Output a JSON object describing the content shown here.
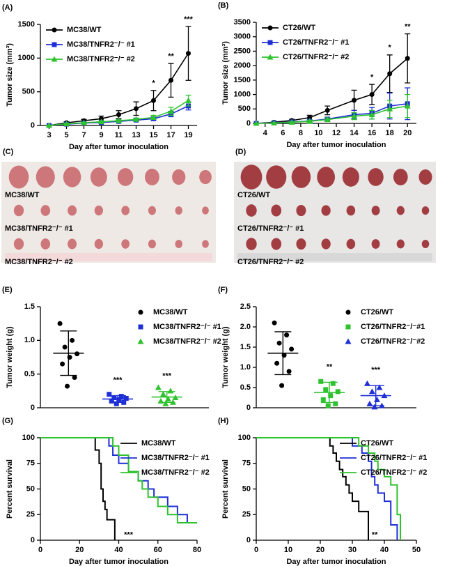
{
  "chart_data": [
    {
      "type": "line",
      "panel": "(A)",
      "xlabel": "Day after tumor inoculation",
      "ylabel": "Tumor size (mm³)",
      "x": [
        3,
        5,
        7,
        9,
        11,
        13,
        15,
        17,
        19
      ],
      "xlim": [
        2,
        20
      ],
      "xticks": [
        3,
        5,
        7,
        9,
        11,
        13,
        15,
        17,
        19
      ],
      "ylim": [
        0,
        1500
      ],
      "yticks": [
        0,
        500,
        1000,
        1500
      ],
      "legend": "upper left",
      "series": [
        {
          "name": "MC38/WT",
          "color": "#000000",
          "marker": "circle",
          "values": [
            0,
            40,
            70,
            100,
            160,
            250,
            370,
            670,
            1070
          ],
          "errors": [
            5,
            15,
            20,
            40,
            60,
            100,
            150,
            250,
            400
          ]
        },
        {
          "name": "MC38/TNFR2⁻/⁻ #1",
          "color": "#1f2fd6",
          "marker": "square",
          "values": [
            0,
            20,
            35,
            45,
            60,
            80,
            100,
            170,
            290
          ],
          "errors": [
            3,
            8,
            10,
            12,
            15,
            20,
            25,
            40,
            60
          ]
        },
        {
          "name": "MC38/TNFR2⁻/⁻ #2",
          "color": "#2ec22e",
          "marker": "triangle",
          "values": [
            0,
            25,
            40,
            55,
            70,
            90,
            120,
            210,
            370
          ],
          "errors": [
            3,
            8,
            10,
            12,
            15,
            20,
            30,
            60,
            80
          ]
        }
      ],
      "annotations": [
        {
          "x": 15,
          "text": "*"
        },
        {
          "x": 17,
          "text": "**"
        },
        {
          "x": 19,
          "text": "***"
        }
      ]
    },
    {
      "type": "line",
      "panel": "(B)",
      "xlabel": "Day after tumor inoculation",
      "ylabel": "Tumor size (mm³)",
      "x": [
        3,
        5,
        7,
        9,
        11,
        14,
        16,
        18,
        20
      ],
      "xlim": [
        3,
        21
      ],
      "xticks": [
        4,
        6,
        8,
        10,
        12,
        14,
        16,
        18,
        20
      ],
      "ylim": [
        0,
        3500
      ],
      "yticks": [
        0,
        500,
        1000,
        1500,
        2000,
        2500,
        3000,
        3500
      ],
      "legend": "upper left",
      "series": [
        {
          "name": "CT26/WT",
          "color": "#000000",
          "marker": "circle",
          "values": [
            0,
            40,
            100,
            200,
            450,
            800,
            1000,
            1720,
            2250
          ],
          "errors": [
            5,
            20,
            40,
            80,
            150,
            350,
            350,
            650,
            850
          ]
        },
        {
          "name": "CT26/TNFR2⁻/⁻ #1",
          "color": "#1f2fd6",
          "marker": "square",
          "values": [
            0,
            20,
            50,
            80,
            150,
            300,
            350,
            600,
            680
          ],
          "errors": [
            3,
            10,
            20,
            40,
            60,
            150,
            200,
            450,
            550
          ]
        },
        {
          "name": "CT26/TNFR2⁻/⁻ #2",
          "color": "#2ec22e",
          "marker": "triangle",
          "values": [
            0,
            15,
            40,
            70,
            130,
            250,
            300,
            500,
            600
          ],
          "errors": [
            3,
            10,
            20,
            40,
            60,
            120,
            150,
            300,
            400
          ]
        }
      ],
      "annotations": [
        {
          "x": 16,
          "text": "*"
        },
        {
          "x": 18,
          "text": "*"
        },
        {
          "x": 20,
          "text": "**"
        }
      ]
    },
    {
      "type": "dotplot",
      "panel": "(E)",
      "ylabel": "Tumor weight (g)",
      "ylim": [
        0,
        1.5
      ],
      "yticks": [
        0,
        0.5,
        {
          "value": 1,
          "label": "1.0"
        },
        1.5
      ],
      "legend": "upper right",
      "series": [
        {
          "name": "MC38/WT",
          "color": "#000000",
          "marker": "circle",
          "values": [
            1.25,
            1.0,
            0.9,
            0.8,
            0.75,
            0.65,
            0.45,
            0.32
          ],
          "mean": 0.81,
          "sd": 0.33
        },
        {
          "name": "MC38/TNFR2⁻/⁻ #1",
          "color": "#1f2fd6",
          "marker": "square",
          "values": [
            0.2,
            0.17,
            0.15,
            0.14,
            0.12,
            0.1,
            0.08,
            0.06
          ],
          "mean": 0.13,
          "sd": 0.05
        },
        {
          "name": "MC38/TNFR2⁻/⁻ #2",
          "color": "#2ec22e",
          "marker": "triangle",
          "values": [
            0.3,
            0.25,
            0.2,
            0.15,
            0.13,
            0.1,
            0.08,
            0.06
          ],
          "mean": 0.16,
          "sd": 0.08
        }
      ],
      "annotations": [
        {
          "series": 1,
          "text": "***"
        },
        {
          "series": 2,
          "text": "***"
        }
      ]
    },
    {
      "type": "dotplot",
      "panel": "(F)",
      "ylabel": "Tumor weight (g)",
      "ylim": [
        0,
        2.5
      ],
      "yticks": [
        0,
        0.5,
        {
          "value": 1,
          "label": "1.0"
        },
        1.5,
        {
          "value": 2,
          "label": "2.0"
        },
        2.5
      ],
      "legend": "upper right",
      "series": [
        {
          "name": "CT26/WT",
          "color": "#000000",
          "marker": "circle",
          "values": [
            2.1,
            1.8,
            1.6,
            1.45,
            1.3,
            1.1,
            0.9,
            0.55
          ],
          "mean": 1.35,
          "sd": 0.53
        },
        {
          "name": "CT26/TNFR2⁻/⁻#1",
          "color": "#2ec22e",
          "marker": "square",
          "values": [
            0.65,
            0.6,
            0.45,
            0.4,
            0.3,
            0.2,
            0.1,
            0.05
          ],
          "mean": 0.38,
          "sd": 0.25
        },
        {
          "name": "CT26/TNFR2⁻/⁻#2",
          "color": "#1f2fd6",
          "marker": "triangle",
          "values": [
            0.6,
            0.5,
            0.4,
            0.3,
            0.2,
            0.1,
            0.05,
            0.02
          ],
          "mean": 0.3,
          "sd": 0.25
        }
      ],
      "annotations": [
        {
          "series": 1,
          "text": "**"
        },
        {
          "series": 2,
          "text": "***"
        }
      ]
    },
    {
      "type": "step",
      "panel": "(G)",
      "xlabel": "Day after tumor inoculation",
      "ylabel": "Percent survival",
      "xlim": [
        0,
        80
      ],
      "xticks": [
        0,
        20,
        40,
        60,
        80
      ],
      "ylim": [
        0,
        100
      ],
      "yticks": [
        0,
        25,
        50,
        75,
        100
      ],
      "legend": "upper right",
      "series": [
        {
          "name": "MC38/WT",
          "color": "#000000",
          "x": [
            0,
            28,
            30,
            31,
            32,
            33,
            34,
            38
          ],
          "values": [
            100,
            88,
            75,
            50,
            38,
            30,
            20,
            0
          ]
        },
        {
          "name": "MC38/TNFR2⁻/⁻ #1",
          "color": "#1f2fd6",
          "x": [
            0,
            35,
            37,
            40,
            45,
            50,
            55,
            58,
            65,
            70,
            75,
            80
          ],
          "values": [
            100,
            92,
            83,
            75,
            67,
            58,
            50,
            42,
            33,
            25,
            17,
            17
          ]
        },
        {
          "name": "MC38/TNFR2⁻/⁻ #2",
          "color": "#2ec22e",
          "x": [
            0,
            37,
            40,
            45,
            50,
            52,
            55,
            60,
            65,
            70,
            80
          ],
          "values": [
            100,
            92,
            83,
            67,
            58,
            50,
            42,
            33,
            25,
            17,
            17
          ]
        }
      ],
      "annotations": [
        {
          "x": 45,
          "y": 5,
          "text": "***"
        }
      ]
    },
    {
      "type": "step",
      "panel": "(H)",
      "xlabel": "Day after tumor inoculation",
      "ylabel": "Percent survival",
      "xlim": [
        0,
        50
      ],
      "xticks": [
        0,
        10,
        20,
        30,
        40,
        50
      ],
      "ylim": [
        0,
        100
      ],
      "yticks": [
        0,
        25,
        50,
        75,
        100
      ],
      "legend": "upper right",
      "series": [
        {
          "name": "CT26/WT",
          "color": "#000000",
          "x": [
            0,
            23,
            24,
            25,
            26,
            27,
            28,
            29,
            30,
            32,
            35
          ],
          "values": [
            100,
            92,
            85,
            77,
            69,
            62,
            54,
            46,
            38,
            28,
            0
          ]
        },
        {
          "name": "CT26/TNFR2⁻/⁻ #1",
          "color": "#1f2fd6",
          "x": [
            0,
            30,
            33,
            35,
            36,
            37,
            38,
            40,
            42,
            44
          ],
          "values": [
            100,
            92,
            85,
            77,
            62,
            54,
            46,
            38,
            15,
            0
          ]
        },
        {
          "name": "CT26/TNFR2⁻/⁻ #2",
          "color": "#2ec22e",
          "x": [
            0,
            32,
            35,
            37,
            38,
            40,
            42,
            44,
            45
          ],
          "values": [
            100,
            92,
            85,
            77,
            69,
            62,
            54,
            25,
            0
          ]
        }
      ],
      "annotations": [
        {
          "x": 37,
          "y": 5,
          "text": "**"
        }
      ]
    }
  ],
  "photos": [
    {
      "panel": "(C)",
      "labels": [
        "MC38/WT",
        "MC38/TNFR2⁻/⁻ #1",
        "MC38/TNFR2⁻/⁻ #2"
      ]
    },
    {
      "panel": "(D)",
      "labels": [
        "CT26/WT",
        "CT26/TNFR2⁻/⁻ #1",
        "CT26/TNFR2⁻/⁻ #2"
      ]
    }
  ]
}
